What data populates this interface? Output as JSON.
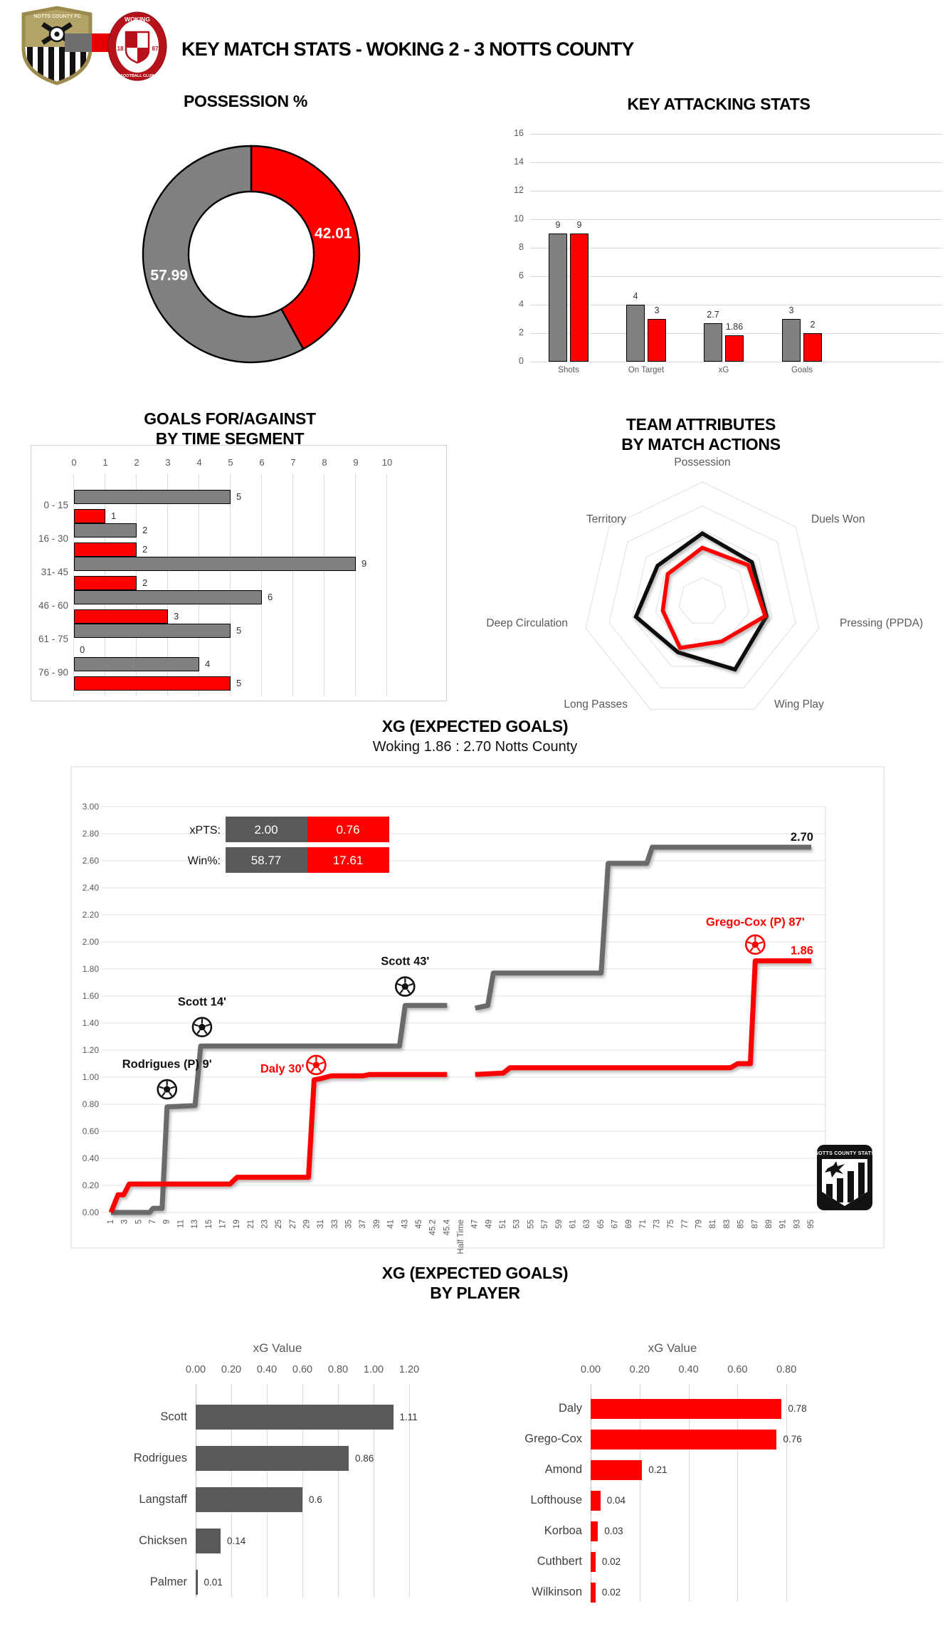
{
  "header": {
    "title": "KEY MATCH STATS - WOKING 2 - 3 NOTTS COUNTY",
    "notts_crest_text": "NOTTS COUNTY FC",
    "woking_crest": {
      "name": "WOKING",
      "footer": "FOOTBALL CLUB",
      "year_left": "18",
      "year_right": "87"
    }
  },
  "badge": {
    "text": "NOTTS COUNTY STATS"
  },
  "colors": {
    "woking_red": "#ff0000",
    "notts_bar_gray": "#808080",
    "dark_gray": "#595959",
    "line_gray": "#6a6a6a",
    "grid": "#d9d9d9",
    "axis_text": "#595959"
  },
  "sections": {
    "xg_by_player": {
      "title": "XG (EXPECTED GOALS)",
      "title2": "BY PLAYER"
    }
  },
  "chart_data": [
    {
      "id": "possession",
      "type": "pie",
      "title": "POSSESSION %",
      "values": [
        {
          "name": "Notts County",
          "value": 57.99,
          "label": "57.99",
          "color": "#808080"
        },
        {
          "name": "Woking",
          "value": 42.01,
          "label": "42.01",
          "color": "#ff0000"
        }
      ]
    },
    {
      "id": "attacking",
      "type": "bar",
      "title": "KEY ATTACKING STATS",
      "categories": [
        "Shots",
        "On Target",
        "xG",
        "Goals"
      ],
      "series": [
        {
          "name": "Notts County",
          "color": "#808080",
          "values": [
            9,
            4,
            2.7,
            3
          ],
          "labels": [
            "9",
            "4",
            "2.7",
            "3"
          ]
        },
        {
          "name": "Woking",
          "color": "#ff0000",
          "values": [
            9,
            3,
            1.86,
            2
          ],
          "labels": [
            "9",
            "3",
            "1.86",
            "2"
          ]
        }
      ],
      "ylim": [
        0,
        16
      ],
      "ytick_step": 2
    },
    {
      "id": "goals_segments",
      "type": "bar-horizontal",
      "title": "GOALS FOR/AGAINST",
      "title2": "BY TIME SEGMENT",
      "categories": [
        "0 - 15",
        "16 - 30",
        "31- 45",
        "46 - 60",
        "61 - 75",
        "76 - 90"
      ],
      "series": [
        {
          "name": "Notts County",
          "color": "#808080",
          "values": [
            5,
            2,
            9,
            6,
            5,
            4
          ]
        },
        {
          "name": "Woking",
          "color": "#ff0000",
          "values": [
            1,
            2,
            2,
            3,
            0,
            5
          ]
        }
      ],
      "xlim": [
        0,
        10
      ]
    },
    {
      "id": "radar",
      "type": "radar",
      "title": "TEAM ATTRIBUTES",
      "title2": "BY MATCH ACTIONS",
      "axes": [
        "Possession",
        "Duels Won",
        "Pressing (PPDA)",
        "Wing Play",
        "Long Passes",
        "Deep Circulation",
        "Territory"
      ],
      "rings": 5,
      "series": [
        {
          "name": "Notts County",
          "color": "#0d0d0d",
          "values": [
            0.57,
            0.53,
            0.55,
            0.63,
            0.47,
            0.57,
            0.48
          ]
        },
        {
          "name": "Woking",
          "color": "#ff0000",
          "values": [
            0.45,
            0.49,
            0.54,
            0.37,
            0.43,
            0.34,
            0.37
          ]
        }
      ]
    },
    {
      "id": "xg_timeline",
      "type": "line",
      "title": "XG (EXPECTED GOALS)",
      "subtitle": "Woking 1.86 : 2.70 Notts County",
      "ylim": [
        0,
        3
      ],
      "yticks": [
        "3.00",
        "2.80",
        "2.60",
        "2.40",
        "2.20",
        "2.00",
        "1.80",
        "1.60",
        "1.40",
        "1.20",
        "1.00",
        "0.80",
        "0.60",
        "0.40",
        "0.20",
        "0.00"
      ],
      "xticks": [
        "1",
        "3",
        "5",
        "7",
        "9",
        "11",
        "13",
        "15",
        "17",
        "19",
        "21",
        "23",
        "25",
        "27",
        "29",
        "31",
        "33",
        "35",
        "37",
        "39",
        "41",
        "43",
        "45",
        "45.2",
        "45.4",
        "Half Time",
        "47",
        "49",
        "51",
        "53",
        "55",
        "57",
        "59",
        "61",
        "63",
        "65",
        "67",
        "69",
        "71",
        "73",
        "75",
        "77",
        "79",
        "81",
        "83",
        "85",
        "87",
        "89",
        "91",
        "93",
        "95"
      ],
      "stats_rows": [
        {
          "label": "xPTS:",
          "home": "2.00",
          "away": "0.76"
        },
        {
          "label": "Win%:",
          "home": "58.77",
          "away": "17.61"
        }
      ],
      "series": [
        {
          "name": "Notts County",
          "color": "#6a6a6a",
          "end_label": "2.70",
          "end_value": 2.7,
          "segments": [
            [
              [
                1,
                0
              ],
              [
                6.5,
                0
              ],
              [
                7,
                0.03
              ],
              [
                8.3,
                0.03
              ],
              [
                9,
                0.78
              ],
              [
                13,
                0.79
              ],
              [
                13.8,
                1.23
              ],
              [
                42.2,
                1.23
              ],
              [
                43,
                1.53
              ],
              [
                45.4,
                1.53
              ]
            ],
            [
              [
                47,
                1.51
              ],
              [
                48.8,
                1.53
              ],
              [
                49.6,
                1.77
              ],
              [
                65,
                1.77
              ],
              [
                66,
                2.58
              ],
              [
                71.5,
                2.58
              ],
              [
                72.3,
                2.7
              ],
              [
                95,
                2.7
              ]
            ]
          ]
        },
        {
          "name": "Woking",
          "color": "#ff0000",
          "end_label": "1.86",
          "end_value": 1.86,
          "segments": [
            [
              [
                1,
                0
              ],
              [
                2,
                0.13
              ],
              [
                2.8,
                0.13
              ],
              [
                3.6,
                0.21
              ],
              [
                18,
                0.21
              ],
              [
                19,
                0.26
              ],
              [
                29.2,
                0.26
              ],
              [
                30,
                0.98
              ],
              [
                31,
                0.99
              ],
              [
                32.5,
                1.01
              ],
              [
                37,
                1.01
              ],
              [
                38,
                1.02
              ],
              [
                45.4,
                1.02
              ]
            ],
            [
              [
                47,
                1.02
              ],
              [
                51,
                1.03
              ],
              [
                52,
                1.07
              ],
              [
                83.5,
                1.07
              ],
              [
                84.5,
                1.1
              ],
              [
                86.3,
                1.1
              ],
              [
                87,
                1.86
              ],
              [
                95,
                1.86
              ]
            ]
          ]
        }
      ],
      "annotations": [
        {
          "text": "Rodrigues (P) 9'",
          "color": "#111111",
          "ball": [
            9,
            0.91
          ],
          "label": [
            9,
            1.1
          ],
          "anchor": "middle"
        },
        {
          "text": "Scott 14'",
          "color": "#111111",
          "ball": [
            14,
            1.37
          ],
          "label": [
            14,
            1.56
          ],
          "anchor": "middle"
        },
        {
          "text": "Scott 43'",
          "color": "#111111",
          "ball": [
            43,
            1.67
          ],
          "label": [
            43,
            1.86
          ],
          "anchor": "middle"
        },
        {
          "text": "Daly 30'",
          "color": "#ff0000",
          "ball": [
            30.3,
            1.09
          ],
          "label": [
            28.6,
            1.065
          ],
          "anchor": "end"
        },
        {
          "text": "Grego-Cox (P) 87'",
          "color": "#ff0000",
          "ball": [
            87,
            1.98
          ],
          "label": [
            87,
            2.15
          ],
          "anchor": "middle"
        }
      ]
    },
    {
      "id": "xg_players_notts",
      "type": "bar-horizontal",
      "xlabel": "xG Value",
      "color": "#595959",
      "players": [
        "Scott",
        "Rodrigues",
        "Langstaff",
        "Chicksen",
        "Palmer"
      ],
      "values": [
        1.11,
        0.86,
        0.6,
        0.14,
        0.01
      ],
      "labels": [
        "1.11",
        "0.86",
        "0.6",
        "0.14",
        "0.01"
      ],
      "xlim": [
        0,
        1.2
      ],
      "xticks": [
        "0.00",
        "0.20",
        "0.40",
        "0.60",
        "0.80",
        "1.00",
        "1.20"
      ]
    },
    {
      "id": "xg_players_woking",
      "type": "bar-horizontal",
      "xlabel": "xG Value",
      "color": "#ff0000",
      "players": [
        "Daly",
        "Grego-Cox",
        "Amond",
        "Lofthouse",
        "Korboa",
        "Cuthbert",
        "Wilkinson"
      ],
      "values": [
        0.78,
        0.76,
        0.21,
        0.04,
        0.03,
        0.02,
        0.02
      ],
      "labels": [
        "0.78",
        "0.76",
        "0.21",
        "0.04",
        "0.03",
        "0.02",
        "0.02"
      ],
      "xlim": [
        0,
        0.8
      ],
      "xticks": [
        "0.00",
        "0.20",
        "0.40",
        "0.60",
        "0.80"
      ]
    }
  ]
}
